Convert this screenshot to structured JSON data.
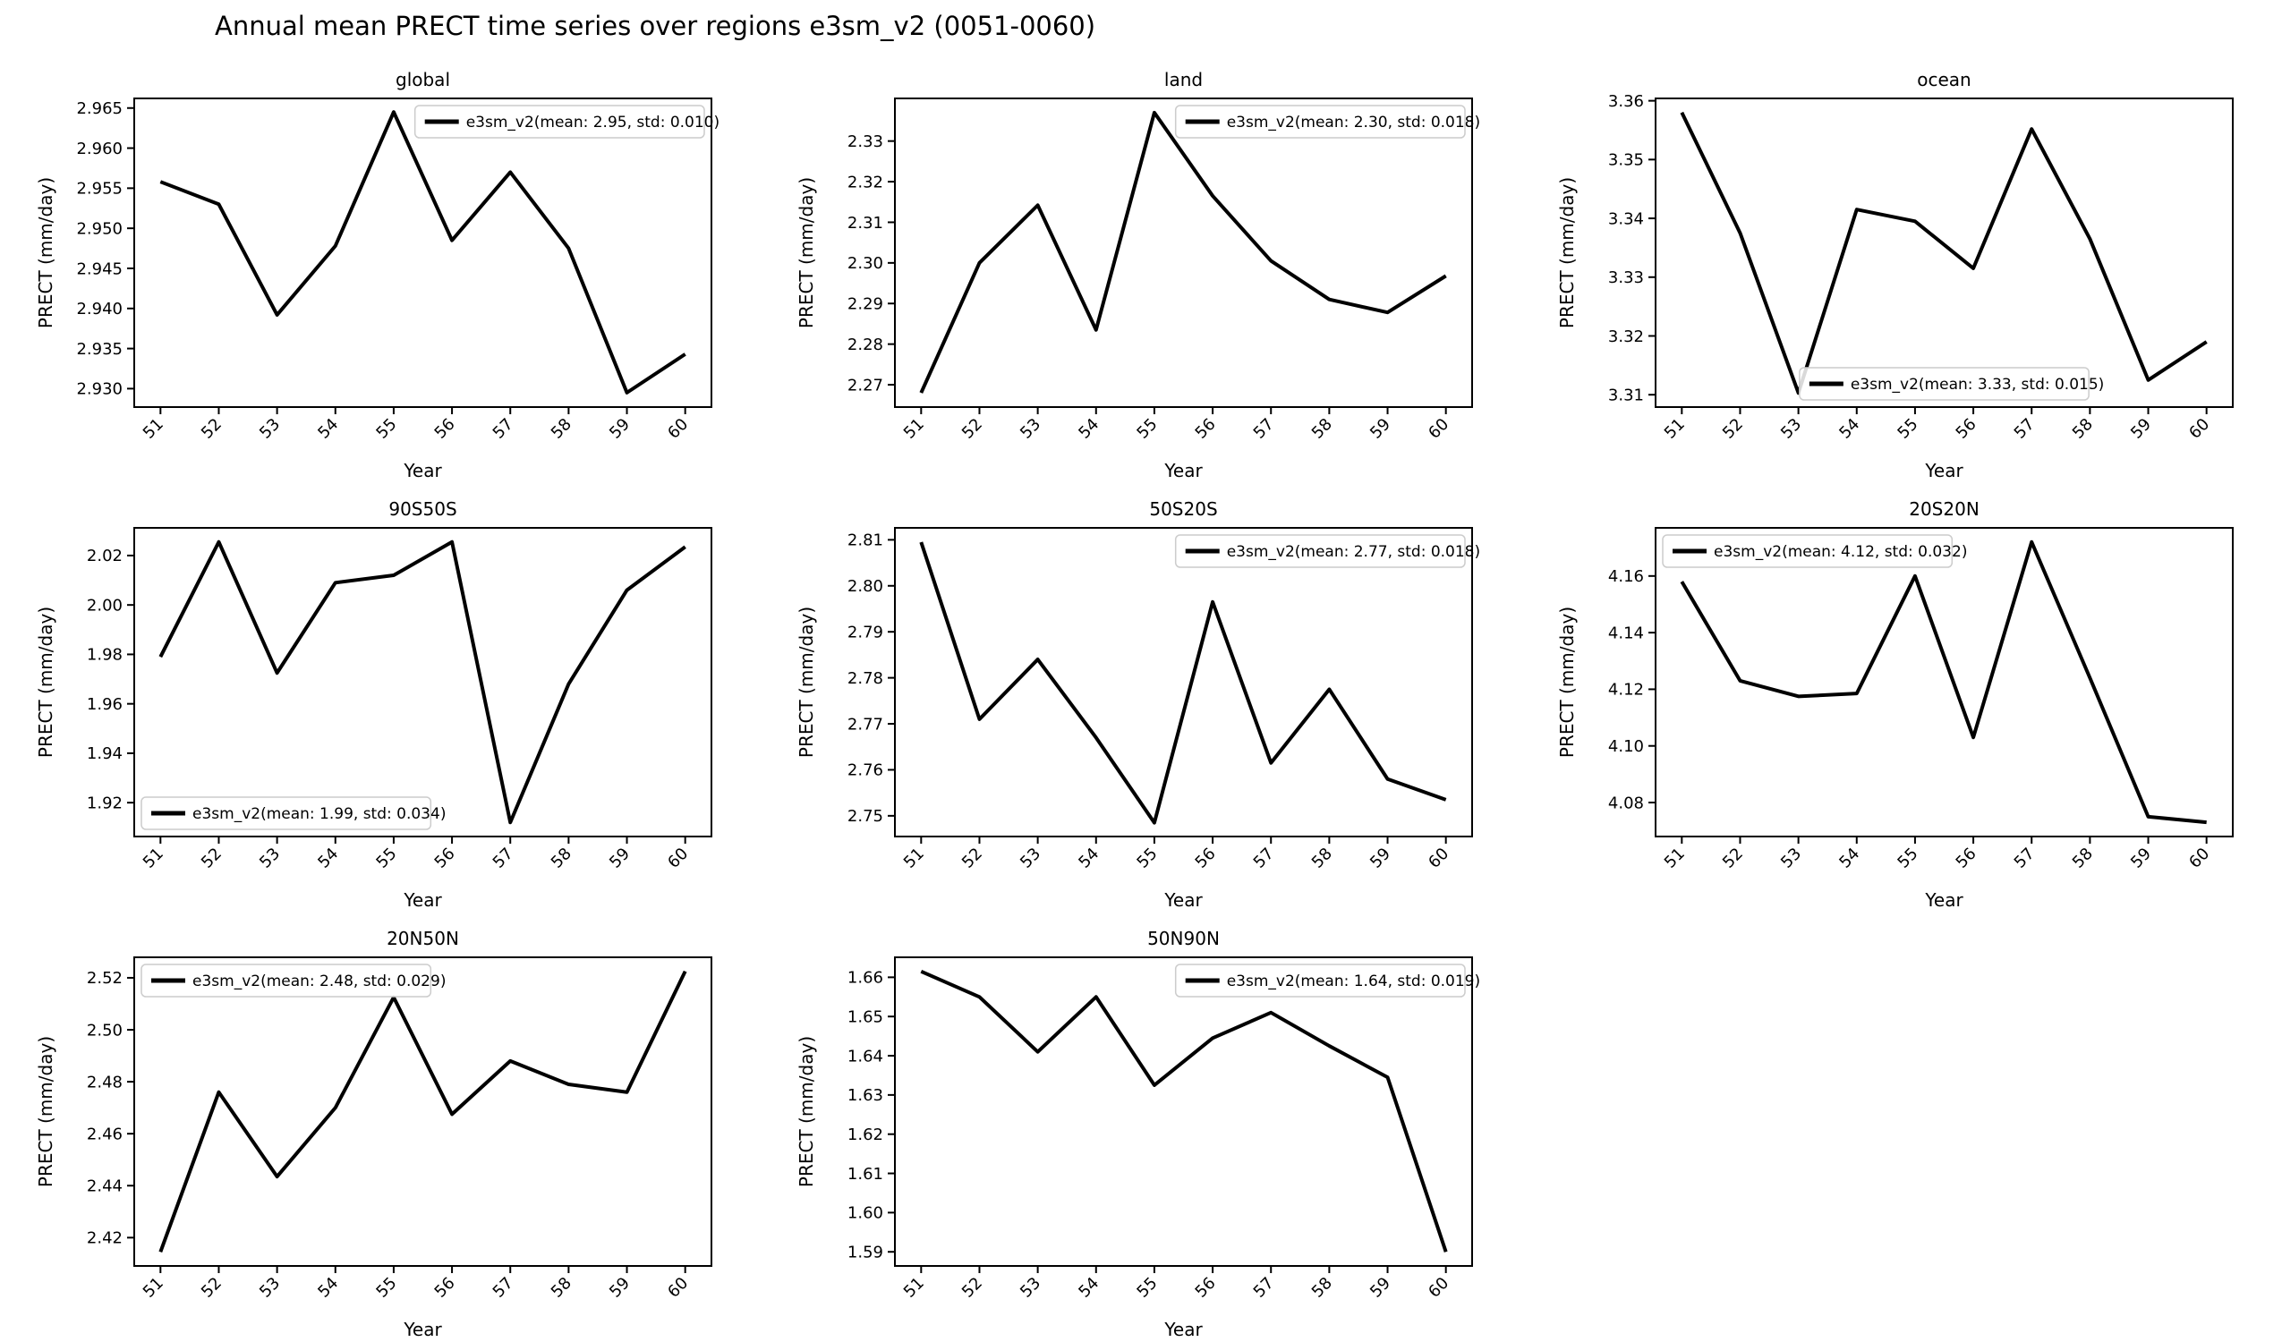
{
  "figure": {
    "title": "Annual mean PRECT time series over regions e3sm_v2 (0051-0060)",
    "background_color": "#ffffff",
    "line_color": "#000000",
    "axis_color": "#000000",
    "legend_border_color": "#cccccc"
  },
  "chart_data": [
    {
      "type": "line",
      "title": "global",
      "xlabel": "Year",
      "ylabel": "PRECT (mm/day)",
      "series_name": "e3sm_v2",
      "legend_label": "e3sm_v2(mean: 2.95, std: 0.010)",
      "legend_position": "upper-right",
      "x": [
        51,
        52,
        53,
        54,
        55,
        56,
        57,
        58,
        59,
        60
      ],
      "x_labels": [
        "51",
        "52",
        "53",
        "54",
        "55",
        "56",
        "57",
        "58",
        "59",
        "60"
      ],
      "values": [
        2.9558,
        2.953,
        2.9392,
        2.9478,
        2.9645,
        2.9485,
        2.957,
        2.9475,
        2.9295,
        2.9343
      ],
      "ytick_values": [
        2.93,
        2.935,
        2.94,
        2.945,
        2.95,
        2.955,
        2.96,
        2.965
      ],
      "ytick_labels": [
        "2.930",
        "2.935",
        "2.940",
        "2.945",
        "2.950",
        "2.955",
        "2.960",
        "2.965"
      ],
      "ylim": [
        2.9277,
        2.9662
      ],
      "xlim": [
        50.55,
        60.45
      ],
      "grid": false
    },
    {
      "type": "line",
      "title": "land",
      "xlabel": "Year",
      "ylabel": "PRECT (mm/day)",
      "series_name": "e3sm_v2",
      "legend_label": "e3sm_v2(mean: 2.30, std: 0.018)",
      "legend_position": "upper-right",
      "x": [
        51,
        52,
        53,
        54,
        55,
        56,
        57,
        58,
        59,
        60
      ],
      "x_labels": [
        "51",
        "52",
        "53",
        "54",
        "55",
        "56",
        "57",
        "58",
        "59",
        "60"
      ],
      "values": [
        2.268,
        2.3,
        2.3142,
        2.2835,
        2.337,
        2.3165,
        2.3005,
        2.291,
        2.2878,
        2.2968
      ],
      "ytick_values": [
        2.27,
        2.28,
        2.29,
        2.3,
        2.31,
        2.32,
        2.33
      ],
      "ytick_labels": [
        "2.27",
        "2.28",
        "2.29",
        "2.30",
        "2.31",
        "2.32",
        "2.33"
      ],
      "ylim": [
        2.2645,
        2.3405
      ],
      "xlim": [
        50.55,
        60.45
      ],
      "grid": false
    },
    {
      "type": "line",
      "title": "ocean",
      "xlabel": "Year",
      "ylabel": "PRECT (mm/day)",
      "series_name": "e3sm_v2",
      "legend_label": "e3sm_v2(mean: 3.33, std: 0.015)",
      "legend_position": "lower-center",
      "x": [
        51,
        52,
        53,
        54,
        55,
        56,
        57,
        58,
        59,
        60
      ],
      "x_labels": [
        "51",
        "52",
        "53",
        "54",
        "55",
        "56",
        "57",
        "58",
        "59",
        "60"
      ],
      "values": [
        3.358,
        3.3375,
        3.3103,
        3.3415,
        3.3395,
        3.3315,
        3.3552,
        3.3365,
        3.3125,
        3.319
      ],
      "ytick_values": [
        3.31,
        3.32,
        3.33,
        3.34,
        3.35,
        3.36
      ],
      "ytick_labels": [
        "3.31",
        "3.32",
        "3.33",
        "3.34",
        "3.35",
        "3.36"
      ],
      "ylim": [
        3.3079,
        3.3604
      ],
      "xlim": [
        50.55,
        60.45
      ],
      "grid": false
    },
    {
      "type": "line",
      "title": "90S50S",
      "xlabel": "Year",
      "ylabel": "PRECT (mm/day)",
      "series_name": "e3sm_v2",
      "legend_label": "e3sm_v2(mean: 1.99, std: 0.034)",
      "legend_position": "lower-left",
      "x": [
        51,
        52,
        53,
        54,
        55,
        56,
        57,
        58,
        59,
        60
      ],
      "x_labels": [
        "51",
        "52",
        "53",
        "54",
        "55",
        "56",
        "57",
        "58",
        "59",
        "60"
      ],
      "values": [
        1.979,
        2.0255,
        1.9725,
        2.009,
        2.012,
        2.0255,
        1.912,
        1.968,
        2.006,
        2.0235
      ],
      "ytick_values": [
        1.92,
        1.94,
        1.96,
        1.98,
        2.0,
        2.02
      ],
      "ytick_labels": [
        "1.92",
        "1.94",
        "1.96",
        "1.98",
        "2.00",
        "2.02"
      ],
      "ylim": [
        1.9063,
        2.0312
      ],
      "xlim": [
        50.55,
        60.45
      ],
      "grid": false
    },
    {
      "type": "line",
      "title": "50S20S",
      "xlabel": "Year",
      "ylabel": "PRECT (mm/day)",
      "series_name": "e3sm_v2",
      "legend_label": "e3sm_v2(mean: 2.77, std: 0.018)",
      "legend_position": "upper-right",
      "x": [
        51,
        52,
        53,
        54,
        55,
        56,
        57,
        58,
        59,
        60
      ],
      "x_labels": [
        "51",
        "52",
        "53",
        "54",
        "55",
        "56",
        "57",
        "58",
        "59",
        "60"
      ],
      "values": [
        2.8095,
        2.771,
        2.784,
        2.767,
        2.7485,
        2.7965,
        2.7615,
        2.7775,
        2.758,
        2.7535
      ],
      "ytick_values": [
        2.75,
        2.76,
        2.77,
        2.78,
        2.79,
        2.8,
        2.81
      ],
      "ytick_labels": [
        "2.75",
        "2.76",
        "2.77",
        "2.78",
        "2.79",
        "2.80",
        "2.81"
      ],
      "ylim": [
        2.7455,
        2.8126
      ],
      "xlim": [
        50.55,
        60.45
      ],
      "grid": false
    },
    {
      "type": "line",
      "title": "20S20N",
      "xlabel": "Year",
      "ylabel": "PRECT (mm/day)",
      "series_name": "e3sm_v2",
      "legend_label": "e3sm_v2(mean: 4.12, std: 0.032)",
      "legend_position": "upper-left",
      "x": [
        51,
        52,
        53,
        54,
        55,
        56,
        57,
        58,
        59,
        60
      ],
      "x_labels": [
        "51",
        "52",
        "53",
        "54",
        "55",
        "56",
        "57",
        "58",
        "59",
        "60"
      ],
      "values": [
        4.158,
        4.123,
        4.1175,
        4.1185,
        4.16,
        4.103,
        4.172,
        4.124,
        4.075,
        4.073
      ],
      "ytick_values": [
        4.08,
        4.1,
        4.12,
        4.14,
        4.16
      ],
      "ytick_labels": [
        "4.08",
        "4.10",
        "4.12",
        "4.14",
        "4.16"
      ],
      "ylim": [
        4.068,
        4.177
      ],
      "xlim": [
        50.55,
        60.45
      ],
      "grid": false
    },
    {
      "type": "line",
      "title": "20N50N",
      "xlabel": "Year",
      "ylabel": "PRECT (mm/day)",
      "series_name": "e3sm_v2",
      "legend_label": "e3sm_v2(mean: 2.48, std: 0.029)",
      "legend_position": "upper-left",
      "x": [
        51,
        52,
        53,
        54,
        55,
        56,
        57,
        58,
        59,
        60
      ],
      "x_labels": [
        "51",
        "52",
        "53",
        "54",
        "55",
        "56",
        "57",
        "58",
        "59",
        "60"
      ],
      "values": [
        2.4145,
        2.476,
        2.4435,
        2.47,
        2.5125,
        2.4675,
        2.488,
        2.479,
        2.476,
        2.5225
      ],
      "ytick_values": [
        2.42,
        2.44,
        2.46,
        2.48,
        2.5,
        2.52
      ],
      "ytick_labels": [
        "2.42",
        "2.44",
        "2.46",
        "2.48",
        "2.50",
        "2.52"
      ],
      "ylim": [
        2.4091,
        2.5279
      ],
      "xlim": [
        50.55,
        60.45
      ],
      "grid": false
    },
    {
      "type": "line",
      "title": "50N90N",
      "xlabel": "Year",
      "ylabel": "PRECT (mm/day)",
      "series_name": "e3sm_v2",
      "legend_label": "e3sm_v2(mean: 1.64, std: 0.019)",
      "legend_position": "upper-right",
      "x": [
        51,
        52,
        53,
        54,
        55,
        56,
        57,
        58,
        59,
        60
      ],
      "x_labels": [
        "51",
        "52",
        "53",
        "54",
        "55",
        "56",
        "57",
        "58",
        "59",
        "60"
      ],
      "values": [
        1.6615,
        1.655,
        1.641,
        1.655,
        1.6325,
        1.6445,
        1.651,
        1.6425,
        1.6345,
        1.59
      ],
      "ytick_values": [
        1.59,
        1.6,
        1.61,
        1.62,
        1.63,
        1.64,
        1.65,
        1.66
      ],
      "ytick_labels": [
        "1.59",
        "1.60",
        "1.61",
        "1.62",
        "1.63",
        "1.64",
        "1.65",
        "1.66"
      ],
      "ylim": [
        1.5864,
        1.6651
      ],
      "xlim": [
        50.55,
        60.45
      ],
      "grid": false
    }
  ]
}
